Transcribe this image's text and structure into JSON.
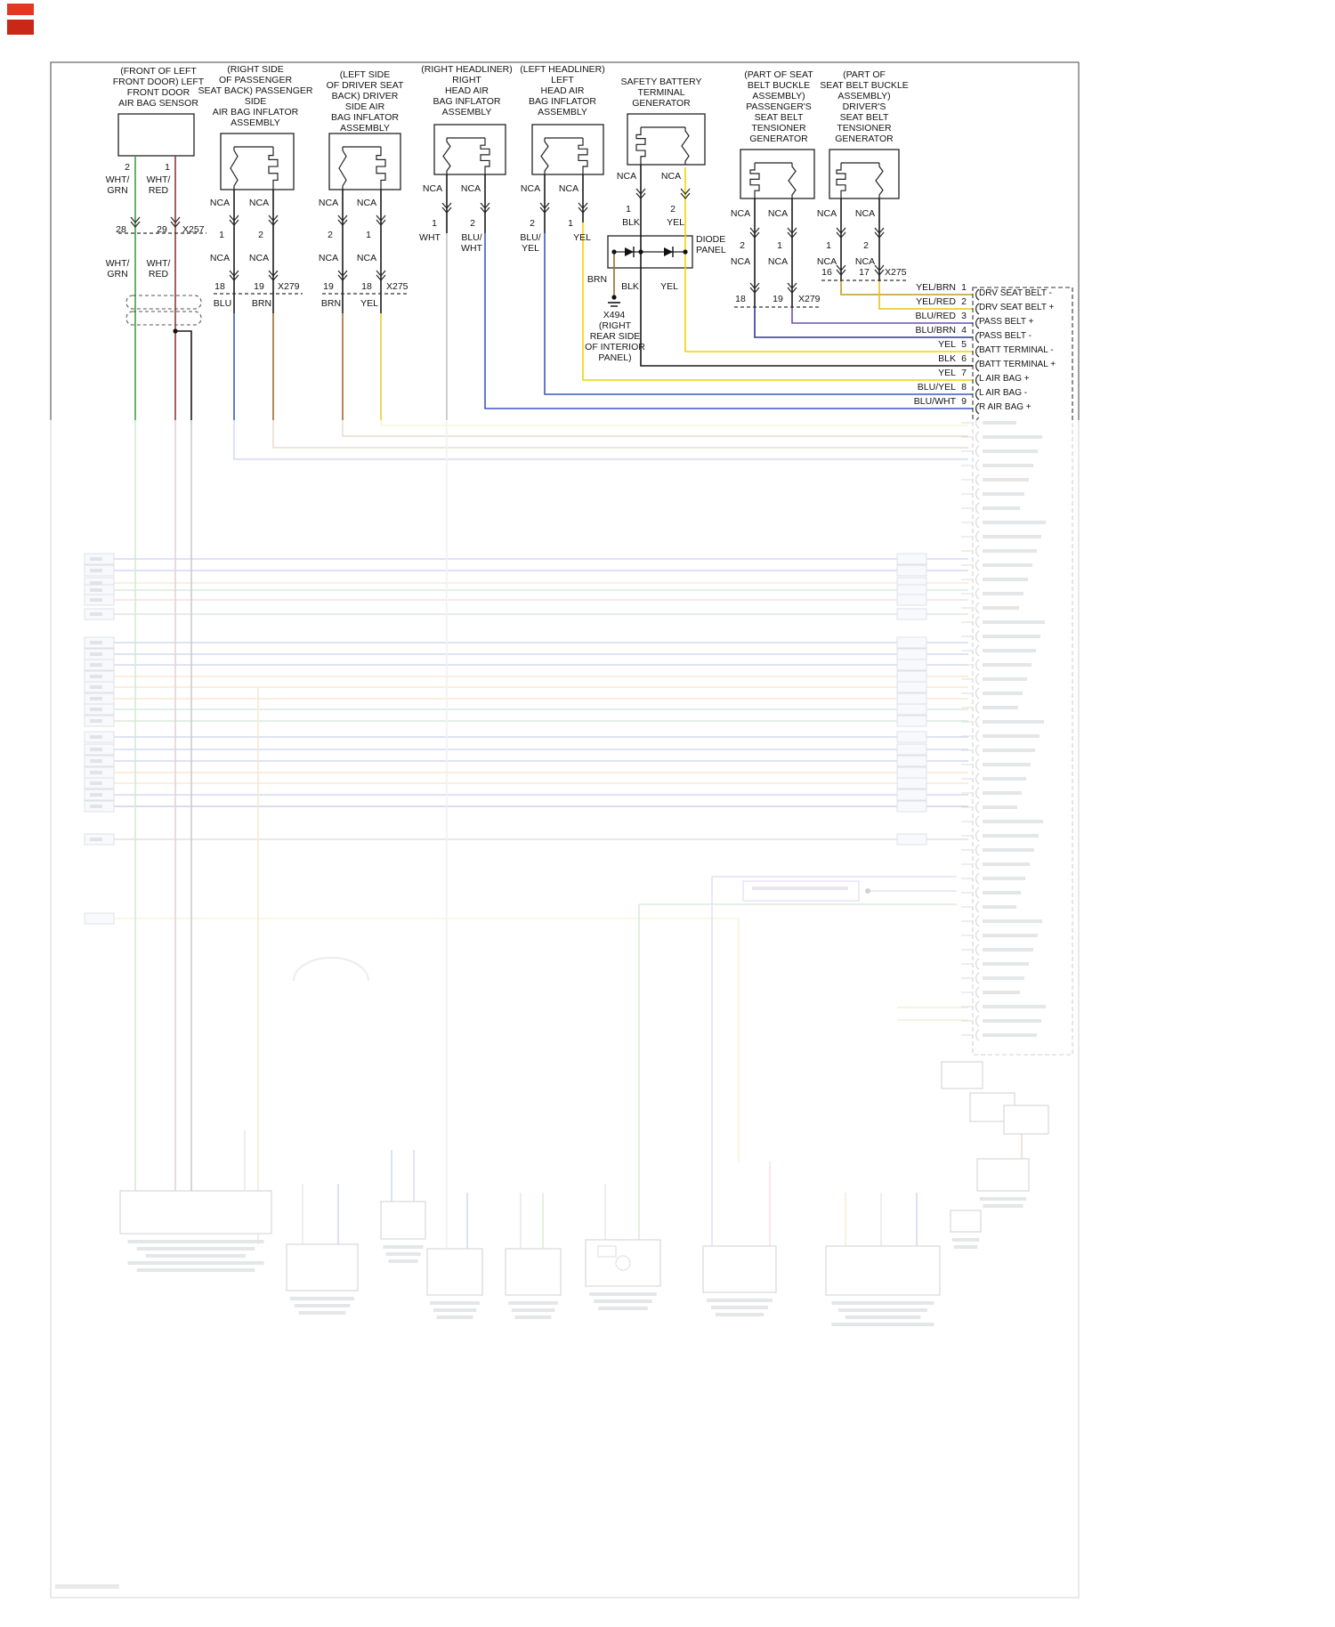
{
  "palette": {
    "wire_green": "#3f9e47",
    "wire_white_red": "#8a3a34",
    "wire_blue": "#3d56c6",
    "wire_brown": "#9c6b30",
    "wire_yellow": "#f0d400",
    "wire_black": "#1a1a1a",
    "wire_navy": "#34359b",
    "wire_purple": "#6b4fb3",
    "wire_yel_brn": "#bf9b1e",
    "wire_yel_red": "#e6c31f",
    "wire_white": "#c4c4c4",
    "fade_overlay": "rgba(255,255,255,0.78)"
  },
  "components": [
    {
      "title": "(FRONT OF LEFT\nFRONT DOOR) LEFT\nFRONT DOOR\nAIR BAG SENSOR",
      "pins": [
        "2",
        "1"
      ],
      "wires": [
        "WHT/\nGRN",
        "WHT/\nRED"
      ],
      "conn_pins": [
        "28",
        "29"
      ],
      "conn_name": "X257",
      "wires2": [
        "WHT/\nGRN",
        "WHT/\nRED"
      ]
    },
    {
      "title": "(RIGHT SIDE\nOF PASSENGER\nSEAT BACK) PASSENGER\nSIDE\nAIR BAG INFLATOR\nASSEMBLY",
      "nca_top": [
        "NCA",
        "NCA"
      ],
      "pins": [
        "1",
        "2"
      ],
      "nca_mid": [
        "NCA",
        "NCA"
      ],
      "conn_pins": [
        "18",
        "19"
      ],
      "conn_name": "X279",
      "wire_colors": [
        "BLU",
        "BRN"
      ]
    },
    {
      "title": "(LEFT SIDE\nOF DRIVER SEAT\nBACK) DRIVER\nSIDE AIR\nBAG INFLATOR\nASSEMBLY",
      "nca_top": [
        "NCA",
        "NCA"
      ],
      "pins": [
        "2",
        "1"
      ],
      "nca_mid": [
        "NCA",
        "NCA"
      ],
      "conn_pins": [
        "19",
        "18"
      ],
      "conn_name": "X275",
      "wire_colors": [
        "BRN",
        "YEL"
      ]
    },
    {
      "title": "(RIGHT HEADLINER)\nRIGHT\nHEAD AIR\nBAG INFLATOR\nASSEMBLY",
      "nca_top": [
        "NCA",
        "NCA"
      ],
      "pins": [
        "1",
        "2"
      ],
      "wire_colors": [
        "WHT",
        "BLU/\nWHT"
      ]
    },
    {
      "title": "(LEFT HEADLINER)\nLEFT\nHEAD AIR\nBAG INFLATOR\nASSEMBLY",
      "nca_top": [
        "NCA",
        "NCA"
      ],
      "pins": [
        "2",
        "1"
      ],
      "wire_colors": [
        "BLU/\nYEL",
        "YEL"
      ]
    },
    {
      "title": "SAFETY BATTERY\nTERMINAL\nGENERATOR",
      "nca_top": [
        "NCA",
        "NCA"
      ],
      "pins": [
        "1",
        "2"
      ],
      "wire_colors": [
        "BLK",
        "YEL"
      ]
    },
    {
      "title": "(PART OF SEAT\nBELT BUCKLE\nASSEMBLY)\nPASSENGER'S\nSEAT BELT\nTENSIONER GENERATOR",
      "nca_top": [
        "NCA",
        "NCA"
      ],
      "pins": [
        "2",
        "1"
      ],
      "nca_mid": [
        "NCA",
        "NCA"
      ],
      "conn_pins": [
        "18",
        "19"
      ],
      "conn_name": "X279"
    },
    {
      "title": "(PART OF\nSEAT BELT BUCKLE\nASSEMBLY)\nDRIVER'S\nSEAT BELT\nTENSIONER\nGENERATOR",
      "nca_top": [
        "NCA",
        "NCA"
      ],
      "pins": [
        "1",
        "2"
      ],
      "nca_mid": [
        "NCA",
        "NCA"
      ],
      "conn_pins": [
        "16",
        "17"
      ],
      "conn_name": "X275"
    }
  ],
  "diode": {
    "label": "DIODE\nPANEL",
    "brn": "BRN",
    "blk": "BLK",
    "yel": "YEL",
    "ground": "X494",
    "ground_loc": "(RIGHT\nREAR SIDE\nOF INTERIOR\nPANEL)"
  },
  "connector": {
    "rows": [
      {
        "color": "YEL/BRN",
        "pin": "1",
        "name": "DRV SEAT BELT -"
      },
      {
        "color": "YEL/RED",
        "pin": "2",
        "name": "DRV SEAT BELT +"
      },
      {
        "color": "BLU/RED",
        "pin": "3",
        "name": "PASS BELT +"
      },
      {
        "color": "BLU/BRN",
        "pin": "4",
        "name": "PASS BELT -"
      },
      {
        "color": "YEL",
        "pin": "5",
        "name": "BATT TERMINAL -"
      },
      {
        "color": "BLK",
        "pin": "6",
        "name": "BATT TERMINAL +"
      },
      {
        "color": "YEL",
        "pin": "7",
        "name": "L AIR BAG +"
      },
      {
        "color": "BLU/YEL",
        "pin": "8",
        "name": "L AIR BAG -"
      },
      {
        "color": "BLU/WHT",
        "pin": "9",
        "name": "R AIR BAG +"
      }
    ]
  }
}
